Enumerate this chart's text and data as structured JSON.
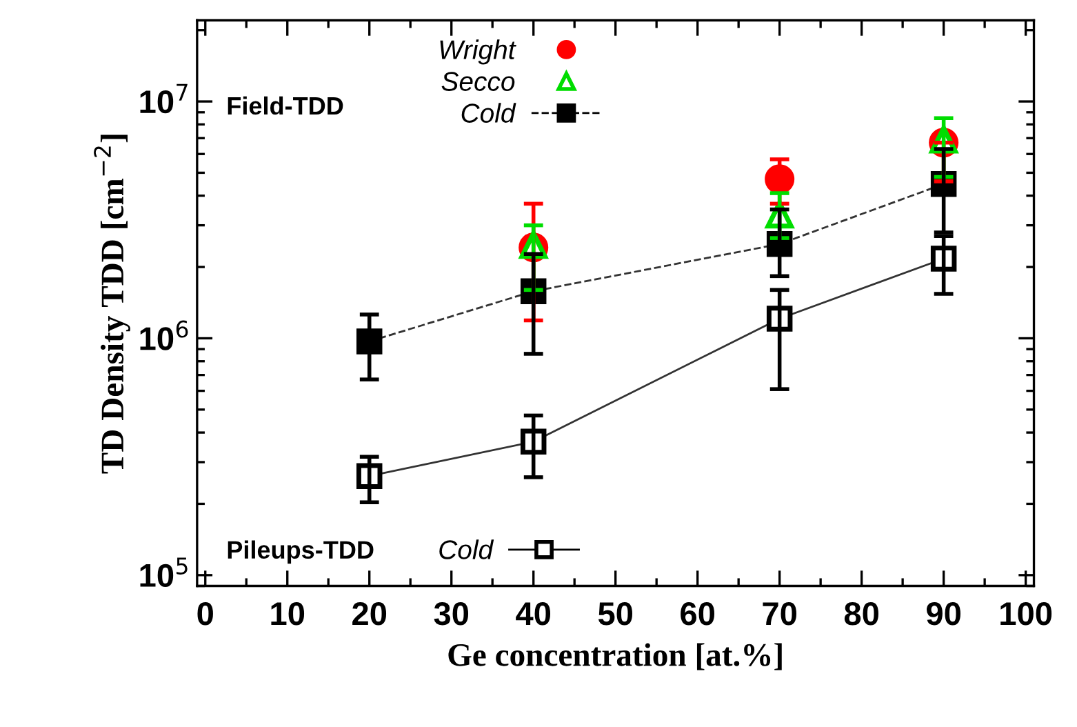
{
  "chart_data": {
    "type": "line",
    "xlabel": "Ge concentration [at.%]",
    "ylabel": "TD Density TDD [cm$^{−2}$]",
    "annotations": [
      "Field-TDD",
      "Pileups-TDD"
    ],
    "xlim": [
      -1,
      101
    ],
    "xticks": [
      0,
      10,
      20,
      30,
      40,
      50,
      60,
      70,
      80,
      90,
      100
    ],
    "ylim": [
      90000,
      22000000
    ],
    "yticks": [
      {
        "value": 100000,
        "label": "10$^{5}$"
      },
      {
        "value": 1000000,
        "label": "10$^{6}$"
      },
      {
        "value": 10000000,
        "label": "10$^{7}$"
      }
    ],
    "log": "y",
    "grid": false,
    "legend": "top left",
    "series": [
      {
        "name": "Wright",
        "type": "scatter",
        "marker": "circle",
        "color": "#ff0000",
        "x": [
          40,
          70,
          90
        ],
        "values": [
          2420000,
          4700000,
          6700000
        ],
        "errors": [
          [
            1190000,
            3700000
          ],
          [
            3700000,
            5700000
          ],
          [
            4600000,
            6700000
          ]
        ]
      },
      {
        "name": "Secco",
        "type": "scatter",
        "marker": "triangle",
        "color": "#00dd00",
        "x": [
          40,
          70,
          90
        ],
        "values": [
          2480000,
          3330000,
          6900000
        ],
        "errors": [
          [
            1600000,
            3000000
          ],
          [
            2650000,
            4100000
          ],
          [
            4800000,
            8500000
          ]
        ]
      },
      {
        "name": "Cold",
        "type": "line",
        "line_style": "dashed",
        "marker": "square",
        "color": "#000000",
        "x": [
          20,
          40,
          70,
          90
        ],
        "values": [
          970000,
          1580000,
          2500000,
          4480000
        ],
        "errors": [
          [
            670000,
            1260000
          ],
          [
            860000,
            2270000
          ],
          [
            1830000,
            3500000
          ],
          [
            2800000,
            6300000
          ]
        ]
      },
      {
        "name": "Cold",
        "type": "line",
        "line_style": "solid",
        "marker": "square",
        "color": "#000000",
        "x": [
          20,
          40,
          70,
          90
        ],
        "values": [
          262000,
          366000,
          1210000,
          2170000
        ],
        "errors": [
          [
            203000,
            316000
          ],
          [
            259000,
            472000
          ],
          [
            610000,
            1600000
          ],
          [
            1540000,
            2700000
          ]
        ]
      }
    ]
  }
}
